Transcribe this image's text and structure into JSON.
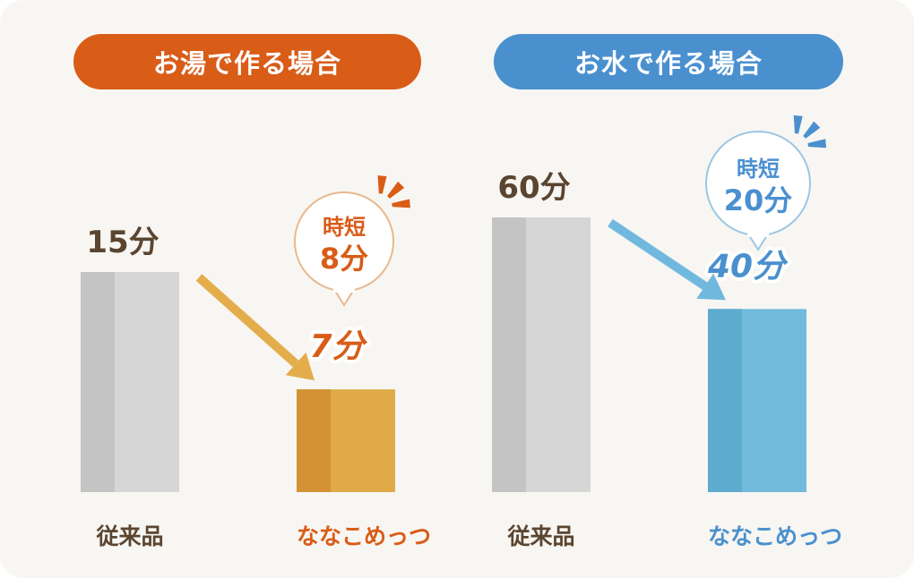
{
  "chart_data": [
    {
      "type": "bar",
      "title": "お湯で作る場合",
      "categories": [
        "従来品",
        "ななこめっつ"
      ],
      "values": [
        15,
        7
      ],
      "value_labels": [
        "15分",
        "7分"
      ],
      "callout": {
        "line1": "時短",
        "line2": "8分"
      },
      "colors": {
        "header": "#d95c17",
        "baseline_bar": "#d6d6d6",
        "baseline_bar_shade": "#c4c4c4",
        "product_bar": "#e0aa48",
        "product_bar_shade": "#d49234",
        "arrow": "#e4ad4c",
        "accent_text": "#d95c17"
      }
    },
    {
      "type": "bar",
      "title": "お水で作る場合",
      "categories": [
        "従来品",
        "ななこめっつ"
      ],
      "values": [
        60,
        40
      ],
      "value_labels": [
        "60分",
        "40分"
      ],
      "callout": {
        "line1": "時短",
        "line2": "20分"
      },
      "colors": {
        "header": "#4a90cf",
        "baseline_bar": "#d6d6d6",
        "baseline_bar_shade": "#c4c4c4",
        "product_bar": "#72bbdc",
        "product_bar_shade": "#5eabd0",
        "arrow": "#70b8de",
        "accent_text": "#4a90cf"
      }
    }
  ]
}
